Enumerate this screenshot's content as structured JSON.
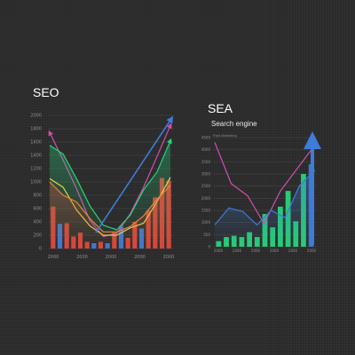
{
  "chart_data": [
    {
      "type": "bar",
      "title": "SEO",
      "x_tick_labels": [
        "2000",
        "2000",
        "2000",
        "2000",
        "2000"
      ],
      "y_tick_labels": [
        "0",
        "200",
        "400",
        "600",
        "800",
        "1000",
        "1200",
        "1400",
        "1600",
        "1800",
        "2000"
      ],
      "ylim": [
        0,
        2000
      ],
      "grid": true,
      "bars": [
        {
          "value": 630,
          "color": "red"
        },
        {
          "value": 370,
          "color": "blue"
        },
        {
          "value": 380,
          "color": "red"
        },
        {
          "value": 180,
          "color": "red"
        },
        {
          "value": 240,
          "color": "red"
        },
        {
          "value": 100,
          "color": "red"
        },
        {
          "value": 80,
          "color": "blue"
        },
        {
          "value": 100,
          "color": "red"
        },
        {
          "value": 80,
          "color": "blue"
        },
        {
          "value": 240,
          "color": "red"
        },
        {
          "value": 330,
          "color": "blue"
        },
        {
          "value": 160,
          "color": "red"
        },
        {
          "value": 400,
          "color": "red"
        },
        {
          "value": 300,
          "color": "blue"
        },
        {
          "value": 570,
          "color": "red"
        },
        {
          "value": 770,
          "color": "red"
        },
        {
          "value": 1060,
          "color": "red"
        },
        {
          "value": 1020,
          "color": "red"
        }
      ],
      "series": [
        {
          "values": [
            1740,
            1330,
            900,
            420,
            180,
            230,
            520,
            920,
            1380,
            1850
          ],
          "color": "magenta"
        },
        {
          "values": [
            1550,
            1420,
            1050,
            640,
            350,
            280,
            500,
            880,
            1150,
            1620
          ],
          "color": "green"
        },
        {
          "values": [
            1050,
            920,
            580,
            340,
            200,
            200,
            310,
            380,
            700,
            1070
          ],
          "color": "yellow"
        },
        {
          "values": [
            1000,
            800,
            700,
            450,
            250,
            250,
            330,
            490,
            740,
            950
          ],
          "color": "orange"
        }
      ]
    },
    {
      "type": "bar",
      "title": "SEA",
      "subtitle": "Search engine",
      "caption": "Paid Marketing",
      "x_tick_labels": [
        "2000",
        "2000",
        "2000",
        "2000",
        "2000",
        "2000"
      ],
      "y_tick_labels": [
        "0",
        "500",
        "1000",
        "1500",
        "2000",
        "2500",
        "3000",
        "3500",
        "4000",
        "4500"
      ],
      "ylim": [
        0,
        4500
      ],
      "grid": true,
      "bars": [
        {
          "value": 230,
          "color": "green"
        },
        {
          "value": 400,
          "color": "green"
        },
        {
          "value": 450,
          "color": "green"
        },
        {
          "value": 400,
          "color": "green"
        },
        {
          "value": 600,
          "color": "green"
        },
        {
          "value": 400,
          "color": "green"
        },
        {
          "value": 1350,
          "color": "green"
        },
        {
          "value": 800,
          "color": "green"
        },
        {
          "value": 1650,
          "color": "green"
        },
        {
          "value": 2300,
          "color": "green"
        },
        {
          "value": 1050,
          "color": "green"
        },
        {
          "value": 3000,
          "color": "green"
        },
        {
          "value": 3400,
          "color": "blue"
        }
      ],
      "series": [
        {
          "values": [
            4300,
            2600,
            2100,
            950,
            2300,
            3200,
            4100
          ],
          "color": "magenta"
        },
        {
          "values": [
            900,
            1600,
            1450,
            900,
            1500,
            1200,
            2500,
            3100
          ],
          "color": "blue"
        }
      ]
    }
  ],
  "colors": {
    "background": "#2a2a2a",
    "red": "#e0483c",
    "blue": "#3f7bd8",
    "green": "#27d47a",
    "magenta": "#d24fb0",
    "yellow": "#e8d64a",
    "orange": "#e8893a",
    "grid": "#4a4a4a",
    "text": "#ffffff"
  }
}
